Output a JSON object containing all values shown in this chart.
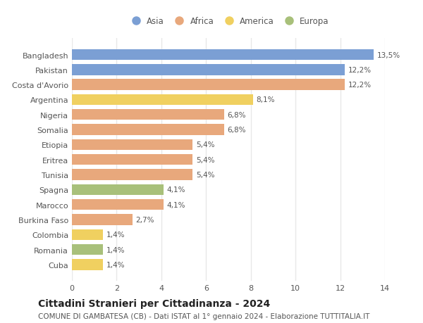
{
  "categories": [
    "Bangladesh",
    "Pakistan",
    "Costa d'Avorio",
    "Argentina",
    "Nigeria",
    "Somalia",
    "Etiopia",
    "Eritrea",
    "Tunisia",
    "Spagna",
    "Marocco",
    "Burkina Faso",
    "Colombia",
    "Romania",
    "Cuba"
  ],
  "values": [
    13.5,
    12.2,
    12.2,
    8.1,
    6.8,
    6.8,
    5.4,
    5.4,
    5.4,
    4.1,
    4.1,
    2.7,
    1.4,
    1.4,
    1.4
  ],
  "labels": [
    "13,5%",
    "12,2%",
    "12,2%",
    "8,1%",
    "6,8%",
    "6,8%",
    "5,4%",
    "5,4%",
    "5,4%",
    "4,1%",
    "4,1%",
    "2,7%",
    "1,4%",
    "1,4%",
    "1,4%"
  ],
  "continents": [
    "Asia",
    "Asia",
    "Africa",
    "America",
    "Africa",
    "Africa",
    "Africa",
    "Africa",
    "Africa",
    "Europa",
    "Africa",
    "Africa",
    "America",
    "Europa",
    "America"
  ],
  "continent_colors": {
    "Asia": "#7b9fd4",
    "Africa": "#e8a87c",
    "America": "#f0d060",
    "Europa": "#a8c07a"
  },
  "legend_order": [
    "Asia",
    "Africa",
    "America",
    "Europa"
  ],
  "title": "Cittadini Stranieri per Cittadinanza - 2024",
  "subtitle": "COMUNE DI GAMBATESA (CB) - Dati ISTAT al 1° gennaio 2024 - Elaborazione TUTTITALIA.IT",
  "xlim": [
    0,
    14
  ],
  "xticks": [
    0,
    2,
    4,
    6,
    8,
    10,
    12,
    14
  ],
  "background_color": "#ffffff",
  "grid_color": "#e8e8e8",
  "bar_height": 0.72,
  "title_fontsize": 10,
  "subtitle_fontsize": 7.5,
  "label_fontsize": 7.5,
  "tick_fontsize": 8,
  "legend_fontsize": 8.5
}
